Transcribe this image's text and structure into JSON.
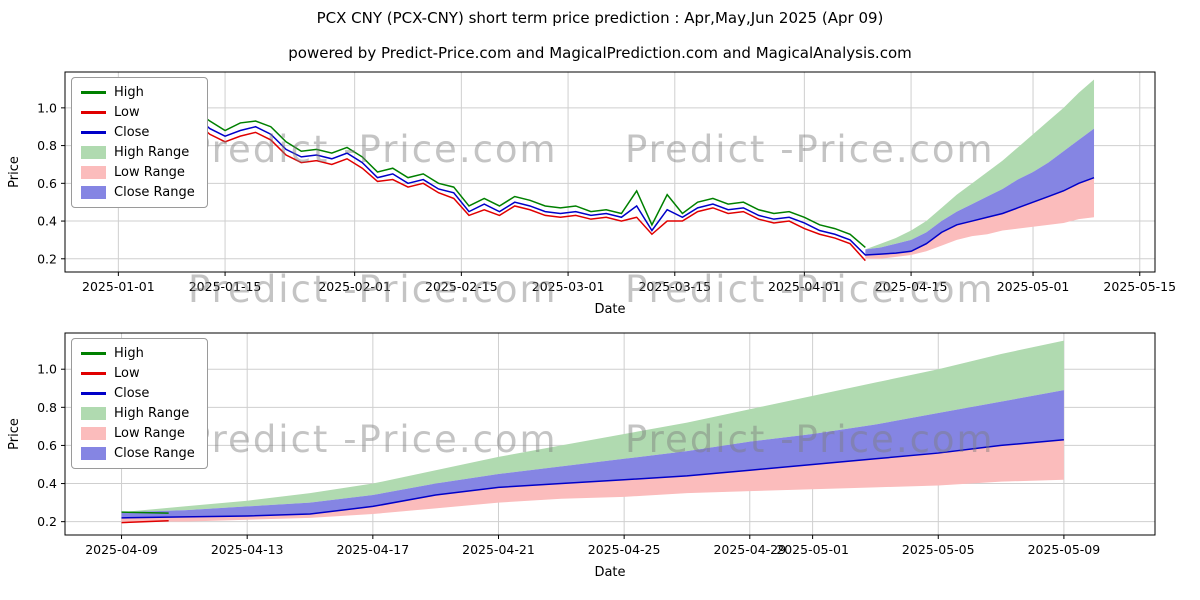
{
  "title": "PCX CNY (PCX-CNY) short term price prediction : Apr,May,Jun 2025 (Apr 09)",
  "subtitle": "powered by Predict-Price.com and MagicalPrediction.com and MagicalAnalysis.com",
  "watermark": "Predict -Price.com",
  "colors": {
    "high_line": "#008000",
    "low_line": "#e00000",
    "close_line": "#0000c8",
    "high_range_fill": "#b0dab0",
    "low_range_fill": "#fbbcbc",
    "close_range_fill": "#8585e3",
    "grid": "#cfcfcf"
  },
  "chart_data": [
    {
      "type": "line",
      "title": "",
      "xlabel": "Date",
      "ylabel": "Price",
      "xlim": [
        -7,
        136
      ],
      "ylim": [
        0.13,
        1.19
      ],
      "grid": true,
      "legend_position": "upper left",
      "yticks": [
        0.2,
        0.4,
        0.6,
        0.8,
        1.0
      ],
      "xticks": [
        {
          "x": 0,
          "label": "2025-01-01"
        },
        {
          "x": 14,
          "label": "2025-01-15"
        },
        {
          "x": 31,
          "label": "2025-02-01"
        },
        {
          "x": 45,
          "label": "2025-02-15"
        },
        {
          "x": 59,
          "label": "2025-03-01"
        },
        {
          "x": 73,
          "label": "2025-03-15"
        },
        {
          "x": 90,
          "label": "2025-04-01"
        },
        {
          "x": 104,
          "label": "2025-04-15"
        },
        {
          "x": 120,
          "label": "2025-05-01"
        },
        {
          "x": 134,
          "label": "2025-05-15"
        }
      ],
      "legend": [
        {
          "label": "High",
          "type": "line",
          "color": "#008000"
        },
        {
          "label": "Low",
          "type": "line",
          "color": "#e00000"
        },
        {
          "label": "Close",
          "type": "line",
          "color": "#0000c8"
        },
        {
          "label": "High Range",
          "type": "patch",
          "color": "#b0dab0"
        },
        {
          "label": "Low Range",
          "type": "patch",
          "color": "#fbbcbc"
        },
        {
          "label": "Close Range",
          "type": "patch",
          "color": "#8585e3"
        }
      ],
      "bands": [
        {
          "name": "High Range",
          "color": "#b0dab0",
          "x": [
            98,
            100,
            102,
            104,
            106,
            108,
            110,
            112,
            114,
            116,
            118,
            120,
            122,
            124,
            126,
            128
          ],
          "top": [
            0.25,
            0.28,
            0.31,
            0.35,
            0.4,
            0.47,
            0.54,
            0.6,
            0.66,
            0.72,
            0.79,
            0.86,
            0.93,
            1.0,
            1.08,
            1.15
          ],
          "bottom": [
            0.25,
            0.26,
            0.28,
            0.3,
            0.34,
            0.4,
            0.45,
            0.49,
            0.53,
            0.57,
            0.62,
            0.66,
            0.71,
            0.77,
            0.83,
            0.89
          ]
        },
        {
          "name": "Low Range",
          "color": "#fbbcbc",
          "x": [
            98,
            100,
            102,
            104,
            106,
            108,
            110,
            112,
            114,
            116,
            118,
            120,
            122,
            124,
            126,
            128
          ],
          "top": [
            0.22,
            0.225,
            0.23,
            0.24,
            0.28,
            0.34,
            0.38,
            0.4,
            0.42,
            0.44,
            0.47,
            0.5,
            0.53,
            0.56,
            0.6,
            0.63
          ],
          "bottom": [
            0.2,
            0.2,
            0.21,
            0.22,
            0.24,
            0.27,
            0.3,
            0.32,
            0.33,
            0.35,
            0.36,
            0.37,
            0.38,
            0.39,
            0.41,
            0.42
          ]
        },
        {
          "name": "Close Range",
          "color": "#8585e3",
          "x": [
            98,
            100,
            102,
            104,
            106,
            108,
            110,
            112,
            114,
            116,
            118,
            120,
            122,
            124,
            126,
            128
          ],
          "top": [
            0.25,
            0.26,
            0.28,
            0.3,
            0.34,
            0.4,
            0.45,
            0.49,
            0.53,
            0.57,
            0.62,
            0.66,
            0.71,
            0.77,
            0.83,
            0.89
          ],
          "bottom": [
            0.22,
            0.225,
            0.23,
            0.24,
            0.28,
            0.34,
            0.38,
            0.4,
            0.42,
            0.44,
            0.47,
            0.5,
            0.53,
            0.56,
            0.6,
            0.63
          ]
        }
      ],
      "series": [
        {
          "name": "High",
          "color": "#008000",
          "x": [
            0,
            2,
            4,
            6,
            8,
            10,
            12,
            14,
            16,
            18,
            20,
            22,
            24,
            26,
            28,
            30,
            32,
            34,
            36,
            38,
            40,
            42,
            44,
            46,
            48,
            50,
            52,
            54,
            56,
            58,
            60,
            62,
            64,
            66,
            68,
            70,
            72,
            74,
            76,
            78,
            80,
            82,
            84,
            86,
            88,
            90,
            92,
            94,
            96,
            98
          ],
          "y": [
            0.97,
            1.0,
            0.98,
            1.01,
            1.02,
            0.99,
            0.93,
            0.88,
            0.92,
            0.93,
            0.9,
            0.82,
            0.77,
            0.78,
            0.76,
            0.79,
            0.74,
            0.66,
            0.68,
            0.63,
            0.65,
            0.6,
            0.58,
            0.48,
            0.52,
            0.48,
            0.53,
            0.51,
            0.48,
            0.47,
            0.48,
            0.45,
            0.46,
            0.44,
            0.56,
            0.38,
            0.54,
            0.44,
            0.5,
            0.52,
            0.49,
            0.5,
            0.46,
            0.44,
            0.45,
            0.42,
            0.38,
            0.36,
            0.33,
            0.26
          ]
        },
        {
          "name": "Low",
          "color": "#e00000",
          "x": [
            0,
            2,
            4,
            6,
            8,
            10,
            12,
            14,
            16,
            18,
            20,
            22,
            24,
            26,
            28,
            30,
            32,
            34,
            36,
            38,
            40,
            42,
            44,
            46,
            48,
            50,
            52,
            54,
            56,
            58,
            60,
            62,
            64,
            66,
            68,
            70,
            72,
            74,
            76,
            78,
            80,
            82,
            84,
            86,
            88,
            90,
            92,
            94,
            96,
            98
          ],
          "y": [
            0.91,
            0.95,
            0.92,
            0.95,
            0.96,
            0.93,
            0.86,
            0.82,
            0.85,
            0.87,
            0.83,
            0.75,
            0.71,
            0.72,
            0.7,
            0.73,
            0.68,
            0.61,
            0.62,
            0.58,
            0.6,
            0.55,
            0.52,
            0.43,
            0.46,
            0.43,
            0.48,
            0.46,
            0.43,
            0.42,
            0.43,
            0.41,
            0.42,
            0.4,
            0.42,
            0.33,
            0.4,
            0.4,
            0.45,
            0.47,
            0.44,
            0.45,
            0.41,
            0.39,
            0.4,
            0.36,
            0.33,
            0.31,
            0.28,
            0.19
          ]
        },
        {
          "name": "Close",
          "color": "#0000c8",
          "x": [
            0,
            2,
            4,
            6,
            8,
            10,
            12,
            14,
            16,
            18,
            20,
            22,
            24,
            26,
            28,
            30,
            32,
            34,
            36,
            38,
            40,
            42,
            44,
            46,
            48,
            50,
            52,
            54,
            56,
            58,
            60,
            62,
            64,
            66,
            68,
            70,
            72,
            74,
            76,
            78,
            80,
            82,
            84,
            86,
            88,
            90,
            92,
            94,
            96,
            98,
            100,
            102,
            104,
            106,
            108,
            110,
            112,
            114,
            116,
            118,
            120,
            122,
            124,
            126,
            128
          ],
          "y": [
            0.94,
            0.97,
            0.95,
            0.98,
            0.99,
            0.96,
            0.89,
            0.85,
            0.88,
            0.9,
            0.86,
            0.78,
            0.74,
            0.75,
            0.73,
            0.76,
            0.71,
            0.63,
            0.65,
            0.6,
            0.62,
            0.57,
            0.55,
            0.45,
            0.49,
            0.45,
            0.5,
            0.48,
            0.45,
            0.44,
            0.45,
            0.43,
            0.44,
            0.42,
            0.48,
            0.35,
            0.46,
            0.42,
            0.47,
            0.49,
            0.46,
            0.47,
            0.43,
            0.41,
            0.42,
            0.39,
            0.35,
            0.33,
            0.3,
            0.22,
            0.225,
            0.23,
            0.24,
            0.28,
            0.34,
            0.38,
            0.4,
            0.42,
            0.44,
            0.47,
            0.5,
            0.53,
            0.56,
            0.6,
            0.63
          ]
        }
      ]
    },
    {
      "type": "line",
      "title": "",
      "xlabel": "Date",
      "ylabel": "Price",
      "xlim": [
        96.2,
        130.9
      ],
      "ylim": [
        0.13,
        1.19
      ],
      "grid": true,
      "legend_position": "upper left",
      "yticks": [
        0.2,
        0.4,
        0.6,
        0.8,
        1.0
      ],
      "xticks": [
        {
          "x": 98,
          "label": "2025-04-09"
        },
        {
          "x": 102,
          "label": "2025-04-13"
        },
        {
          "x": 106,
          "label": "2025-04-17"
        },
        {
          "x": 110,
          "label": "2025-04-21"
        },
        {
          "x": 114,
          "label": "2025-04-25"
        },
        {
          "x": 118,
          "label": "2025-04-29"
        },
        {
          "x": 120,
          "label": "2025-05-01"
        },
        {
          "x": 124,
          "label": "2025-05-05"
        },
        {
          "x": 128,
          "label": "2025-05-09"
        }
      ],
      "legend": [
        {
          "label": "High",
          "type": "line",
          "color": "#008000"
        },
        {
          "label": "Low",
          "type": "line",
          "color": "#e00000"
        },
        {
          "label": "Close",
          "type": "line",
          "color": "#0000c8"
        },
        {
          "label": "High Range",
          "type": "patch",
          "color": "#b0dab0"
        },
        {
          "label": "Low Range",
          "type": "patch",
          "color": "#fbbcbc"
        },
        {
          "label": "Close Range",
          "type": "patch",
          "color": "#8585e3"
        }
      ],
      "bands": [
        {
          "name": "High Range",
          "color": "#b0dab0",
          "x": [
            98,
            100,
            102,
            104,
            106,
            108,
            110,
            112,
            114,
            116,
            118,
            120,
            122,
            124,
            126,
            128
          ],
          "top": [
            0.25,
            0.28,
            0.31,
            0.35,
            0.4,
            0.47,
            0.54,
            0.6,
            0.66,
            0.72,
            0.79,
            0.86,
            0.93,
            1.0,
            1.08,
            1.15
          ],
          "bottom": [
            0.25,
            0.26,
            0.28,
            0.3,
            0.34,
            0.4,
            0.45,
            0.49,
            0.53,
            0.57,
            0.62,
            0.66,
            0.71,
            0.77,
            0.83,
            0.89
          ]
        },
        {
          "name": "Low Range",
          "color": "#fbbcbc",
          "x": [
            98,
            100,
            102,
            104,
            106,
            108,
            110,
            112,
            114,
            116,
            118,
            120,
            122,
            124,
            126,
            128
          ],
          "top": [
            0.22,
            0.225,
            0.23,
            0.24,
            0.28,
            0.34,
            0.38,
            0.4,
            0.42,
            0.44,
            0.47,
            0.5,
            0.53,
            0.56,
            0.6,
            0.63
          ],
          "bottom": [
            0.2,
            0.2,
            0.21,
            0.22,
            0.24,
            0.27,
            0.3,
            0.32,
            0.33,
            0.35,
            0.36,
            0.37,
            0.38,
            0.39,
            0.41,
            0.42
          ]
        },
        {
          "name": "Close Range",
          "color": "#8585e3",
          "x": [
            98,
            100,
            102,
            104,
            106,
            108,
            110,
            112,
            114,
            116,
            118,
            120,
            122,
            124,
            126,
            128
          ],
          "top": [
            0.25,
            0.26,
            0.28,
            0.3,
            0.34,
            0.4,
            0.45,
            0.49,
            0.53,
            0.57,
            0.62,
            0.66,
            0.71,
            0.77,
            0.83,
            0.89
          ],
          "bottom": [
            0.22,
            0.225,
            0.23,
            0.24,
            0.28,
            0.34,
            0.38,
            0.4,
            0.42,
            0.44,
            0.47,
            0.5,
            0.53,
            0.56,
            0.6,
            0.63
          ]
        }
      ],
      "series": [
        {
          "name": "High",
          "color": "#008000",
          "x": [
            98,
            99.5
          ],
          "y": [
            0.25,
            0.245
          ]
        },
        {
          "name": "Low",
          "color": "#e00000",
          "x": [
            98,
            99.5
          ],
          "y": [
            0.195,
            0.205
          ]
        },
        {
          "name": "Close",
          "color": "#0000c8",
          "x": [
            98,
            100,
            102,
            104,
            106,
            108,
            110,
            112,
            114,
            116,
            118,
            120,
            122,
            124,
            126,
            128
          ],
          "y": [
            0.22,
            0.225,
            0.23,
            0.24,
            0.28,
            0.34,
            0.38,
            0.4,
            0.42,
            0.44,
            0.47,
            0.5,
            0.53,
            0.56,
            0.6,
            0.63
          ]
        }
      ]
    }
  ]
}
